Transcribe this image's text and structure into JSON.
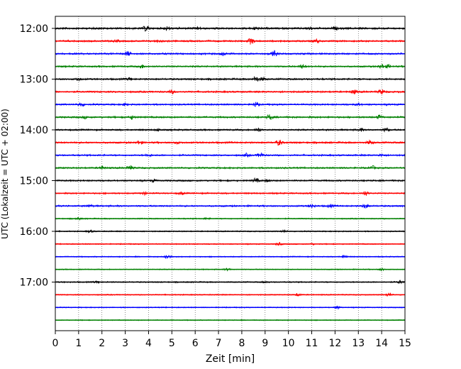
{
  "chart_data": {
    "type": "line",
    "title": "",
    "xlabel": "Zeit  [min]",
    "ylabel": "UTC (Lokalzeit = UTC + 02:00)",
    "xlim": [
      0,
      15
    ],
    "x_ticks": [
      "0",
      "1",
      "2",
      "3",
      "4",
      "5",
      "6",
      "7",
      "8",
      "9",
      "10",
      "11",
      "12",
      "13",
      "14",
      "15"
    ],
    "y_ticks": [
      "12:00",
      "13:00",
      "14:00",
      "15:00",
      "16:00",
      "17:00"
    ],
    "grid": "vertical dotted at each minute",
    "legend": "none",
    "row_interval_minutes": 15,
    "row_colors": [
      "#000000",
      "#ff0000",
      "#0000ff",
      "#008000"
    ],
    "rows": [
      {
        "start": "12:00",
        "color": "#000000",
        "amplitude": 3.2,
        "events": [
          [
            3.9,
            7
          ],
          [
            4.8,
            4
          ],
          [
            6.1,
            3
          ],
          [
            8.6,
            4
          ],
          [
            10.9,
            3
          ],
          [
            12.0,
            3
          ]
        ]
      },
      {
        "start": "12:15",
        "color": "#ff0000",
        "amplitude": 2.8,
        "events": [
          [
            2.6,
            3
          ],
          [
            4.4,
            3
          ],
          [
            8.4,
            8
          ],
          [
            11.2,
            5
          ]
        ]
      },
      {
        "start": "12:30",
        "color": "#0000ff",
        "amplitude": 2.8,
        "events": [
          [
            3.1,
            6
          ],
          [
            7.2,
            4
          ],
          [
            9.4,
            7
          ]
        ]
      },
      {
        "start": "12:45",
        "color": "#008000",
        "amplitude": 2.6,
        "events": [
          [
            3.7,
            5
          ],
          [
            10.6,
            5
          ],
          [
            14.0,
            6
          ],
          [
            14.3,
            4
          ]
        ]
      },
      {
        "start": "13:00",
        "color": "#000000",
        "amplitude": 2.8,
        "events": [
          [
            1.0,
            4
          ],
          [
            3.2,
            4
          ],
          [
            8.6,
            7
          ],
          [
            8.9,
            4
          ]
        ]
      },
      {
        "start": "13:15",
        "color": "#ff0000",
        "amplitude": 2.8,
        "events": [
          [
            5.0,
            4
          ],
          [
            12.8,
            5
          ],
          [
            14.0,
            6
          ]
        ]
      },
      {
        "start": "13:30",
        "color": "#0000ff",
        "amplitude": 2.6,
        "events": [
          [
            1.1,
            5
          ],
          [
            3.0,
            3
          ],
          [
            8.6,
            6
          ],
          [
            13.0,
            3
          ]
        ]
      },
      {
        "start": "13:45",
        "color": "#008000",
        "amplitude": 2.8,
        "events": [
          [
            1.3,
            3
          ],
          [
            3.3,
            5
          ],
          [
            9.2,
            7
          ],
          [
            13.9,
            5
          ]
        ]
      },
      {
        "start": "14:00",
        "color": "#000000",
        "amplitude": 2.6,
        "events": [
          [
            4.4,
            3
          ],
          [
            8.7,
            6
          ],
          [
            13.1,
            4
          ],
          [
            14.2,
            5
          ]
        ]
      },
      {
        "start": "14:15",
        "color": "#ff0000",
        "amplitude": 2.8,
        "events": [
          [
            3.6,
            5
          ],
          [
            5.2,
            3
          ],
          [
            9.6,
            7
          ],
          [
            13.5,
            5
          ]
        ]
      },
      {
        "start": "14:30",
        "color": "#0000ff",
        "amplitude": 2.6,
        "events": [
          [
            4.0,
            3
          ],
          [
            8.2,
            4
          ],
          [
            8.8,
            6
          ],
          [
            14.0,
            3
          ]
        ]
      },
      {
        "start": "14:45",
        "color": "#008000",
        "amplitude": 2.6,
        "events": [
          [
            2.0,
            4
          ],
          [
            3.2,
            6
          ],
          [
            13.6,
            5
          ]
        ]
      },
      {
        "start": "15:00",
        "color": "#000000",
        "amplitude": 2.6,
        "events": [
          [
            4.2,
            3
          ],
          [
            8.6,
            6
          ],
          [
            9.1,
            3
          ]
        ]
      },
      {
        "start": "15:15",
        "color": "#ff0000",
        "amplitude": 2.4,
        "events": [
          [
            3.8,
            4
          ],
          [
            5.4,
            3
          ],
          [
            13.3,
            6
          ]
        ]
      },
      {
        "start": "15:30",
        "color": "#0000ff",
        "amplitude": 2.6,
        "events": [
          [
            1.5,
            3
          ],
          [
            11.0,
            5
          ],
          [
            11.8,
            4
          ],
          [
            13.3,
            6
          ]
        ]
      },
      {
        "start": "15:45",
        "color": "#008000",
        "amplitude": 1.9,
        "events": [
          [
            1.0,
            3
          ],
          [
            6.5,
            2
          ]
        ]
      },
      {
        "start": "16:00",
        "color": "#000000",
        "amplitude": 1.9,
        "events": [
          [
            1.5,
            3
          ],
          [
            9.8,
            3
          ]
        ]
      },
      {
        "start": "16:15",
        "color": "#ff0000",
        "amplitude": 1.8,
        "events": [
          [
            9.6,
            4
          ],
          [
            11.0,
            2
          ]
        ]
      },
      {
        "start": "16:30",
        "color": "#0000ff",
        "amplitude": 1.8,
        "events": [
          [
            4.8,
            6
          ],
          [
            12.4,
            5
          ]
        ]
      },
      {
        "start": "16:45",
        "color": "#008000",
        "amplitude": 1.6,
        "events": [
          [
            7.4,
            3
          ],
          [
            14.0,
            3
          ]
        ]
      },
      {
        "start": "17:00",
        "color": "#000000",
        "amplitude": 2.0,
        "events": [
          [
            1.8,
            3
          ],
          [
            9.0,
            2
          ],
          [
            14.8,
            4
          ]
        ]
      },
      {
        "start": "17:15",
        "color": "#ff0000",
        "amplitude": 1.8,
        "events": [
          [
            10.4,
            4
          ],
          [
            14.3,
            5
          ]
        ]
      },
      {
        "start": "17:30",
        "color": "#0000ff",
        "amplitude": 1.7,
        "events": [
          [
            12.1,
            4
          ]
        ]
      },
      {
        "start": "17:45",
        "color": "#008000",
        "amplitude": 1.5,
        "events": []
      }
    ]
  }
}
